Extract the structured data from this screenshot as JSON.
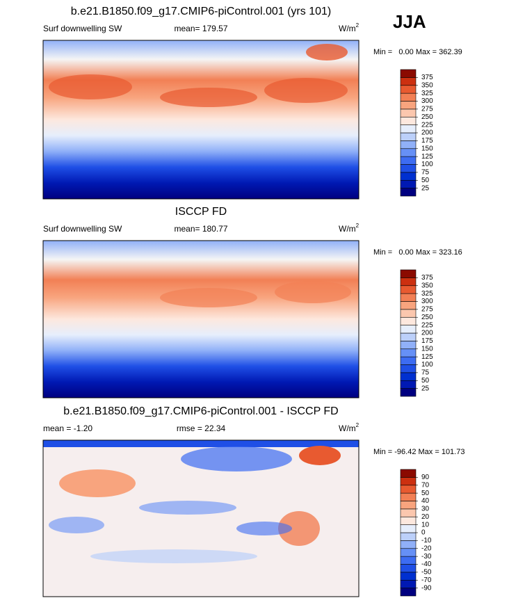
{
  "season": "JJA",
  "panels": [
    {
      "title": "b.e21.B1850.f09_g17.CMIP6-piControl.001 (yrs 101)",
      "left": "Surf downwelling SW",
      "center": "mean= 179.57",
      "units": "W/m",
      "units_exp": "2",
      "minmax": "Min =   0.00 Max = 362.39",
      "levels": [
        25,
        50,
        75,
        100,
        125,
        150,
        175,
        200,
        225,
        250,
        275,
        300,
        325,
        350,
        375
      ]
    },
    {
      "title": "ISCCP FD",
      "left": "Surf downwelling SW",
      "center": "mean= 180.77",
      "units": "W/m",
      "units_exp": "2",
      "minmax": "Min =   0.00 Max = 323.16",
      "levels": [
        25,
        50,
        75,
        100,
        125,
        150,
        175,
        200,
        225,
        250,
        275,
        300,
        325,
        350,
        375
      ]
    },
    {
      "title": "b.e21.B1850.f09_g17.CMIP6-piControl.001 - ISCCP FD",
      "left": "mean =  -1.20",
      "center": "rmse =  22.34",
      "units": "W/m",
      "units_exp": "2",
      "minmax": "Min = -96.42 Max = 101.73",
      "levels": [
        -90,
        -70,
        -50,
        -40,
        -30,
        -20,
        -10,
        0,
        10,
        20,
        30,
        40,
        50,
        70,
        90
      ]
    }
  ],
  "colors": [
    "#000080",
    "#0019b3",
    "#0030d0",
    "#1f4fe6",
    "#3d6cf2",
    "#6690f6",
    "#90b0f8",
    "#bcd0fa",
    "#e6eefc",
    "#fde8de",
    "#fbc7ae",
    "#f8a47e",
    "#f28055",
    "#e85a30",
    "#cc3010",
    "#8b0a00"
  ]
}
